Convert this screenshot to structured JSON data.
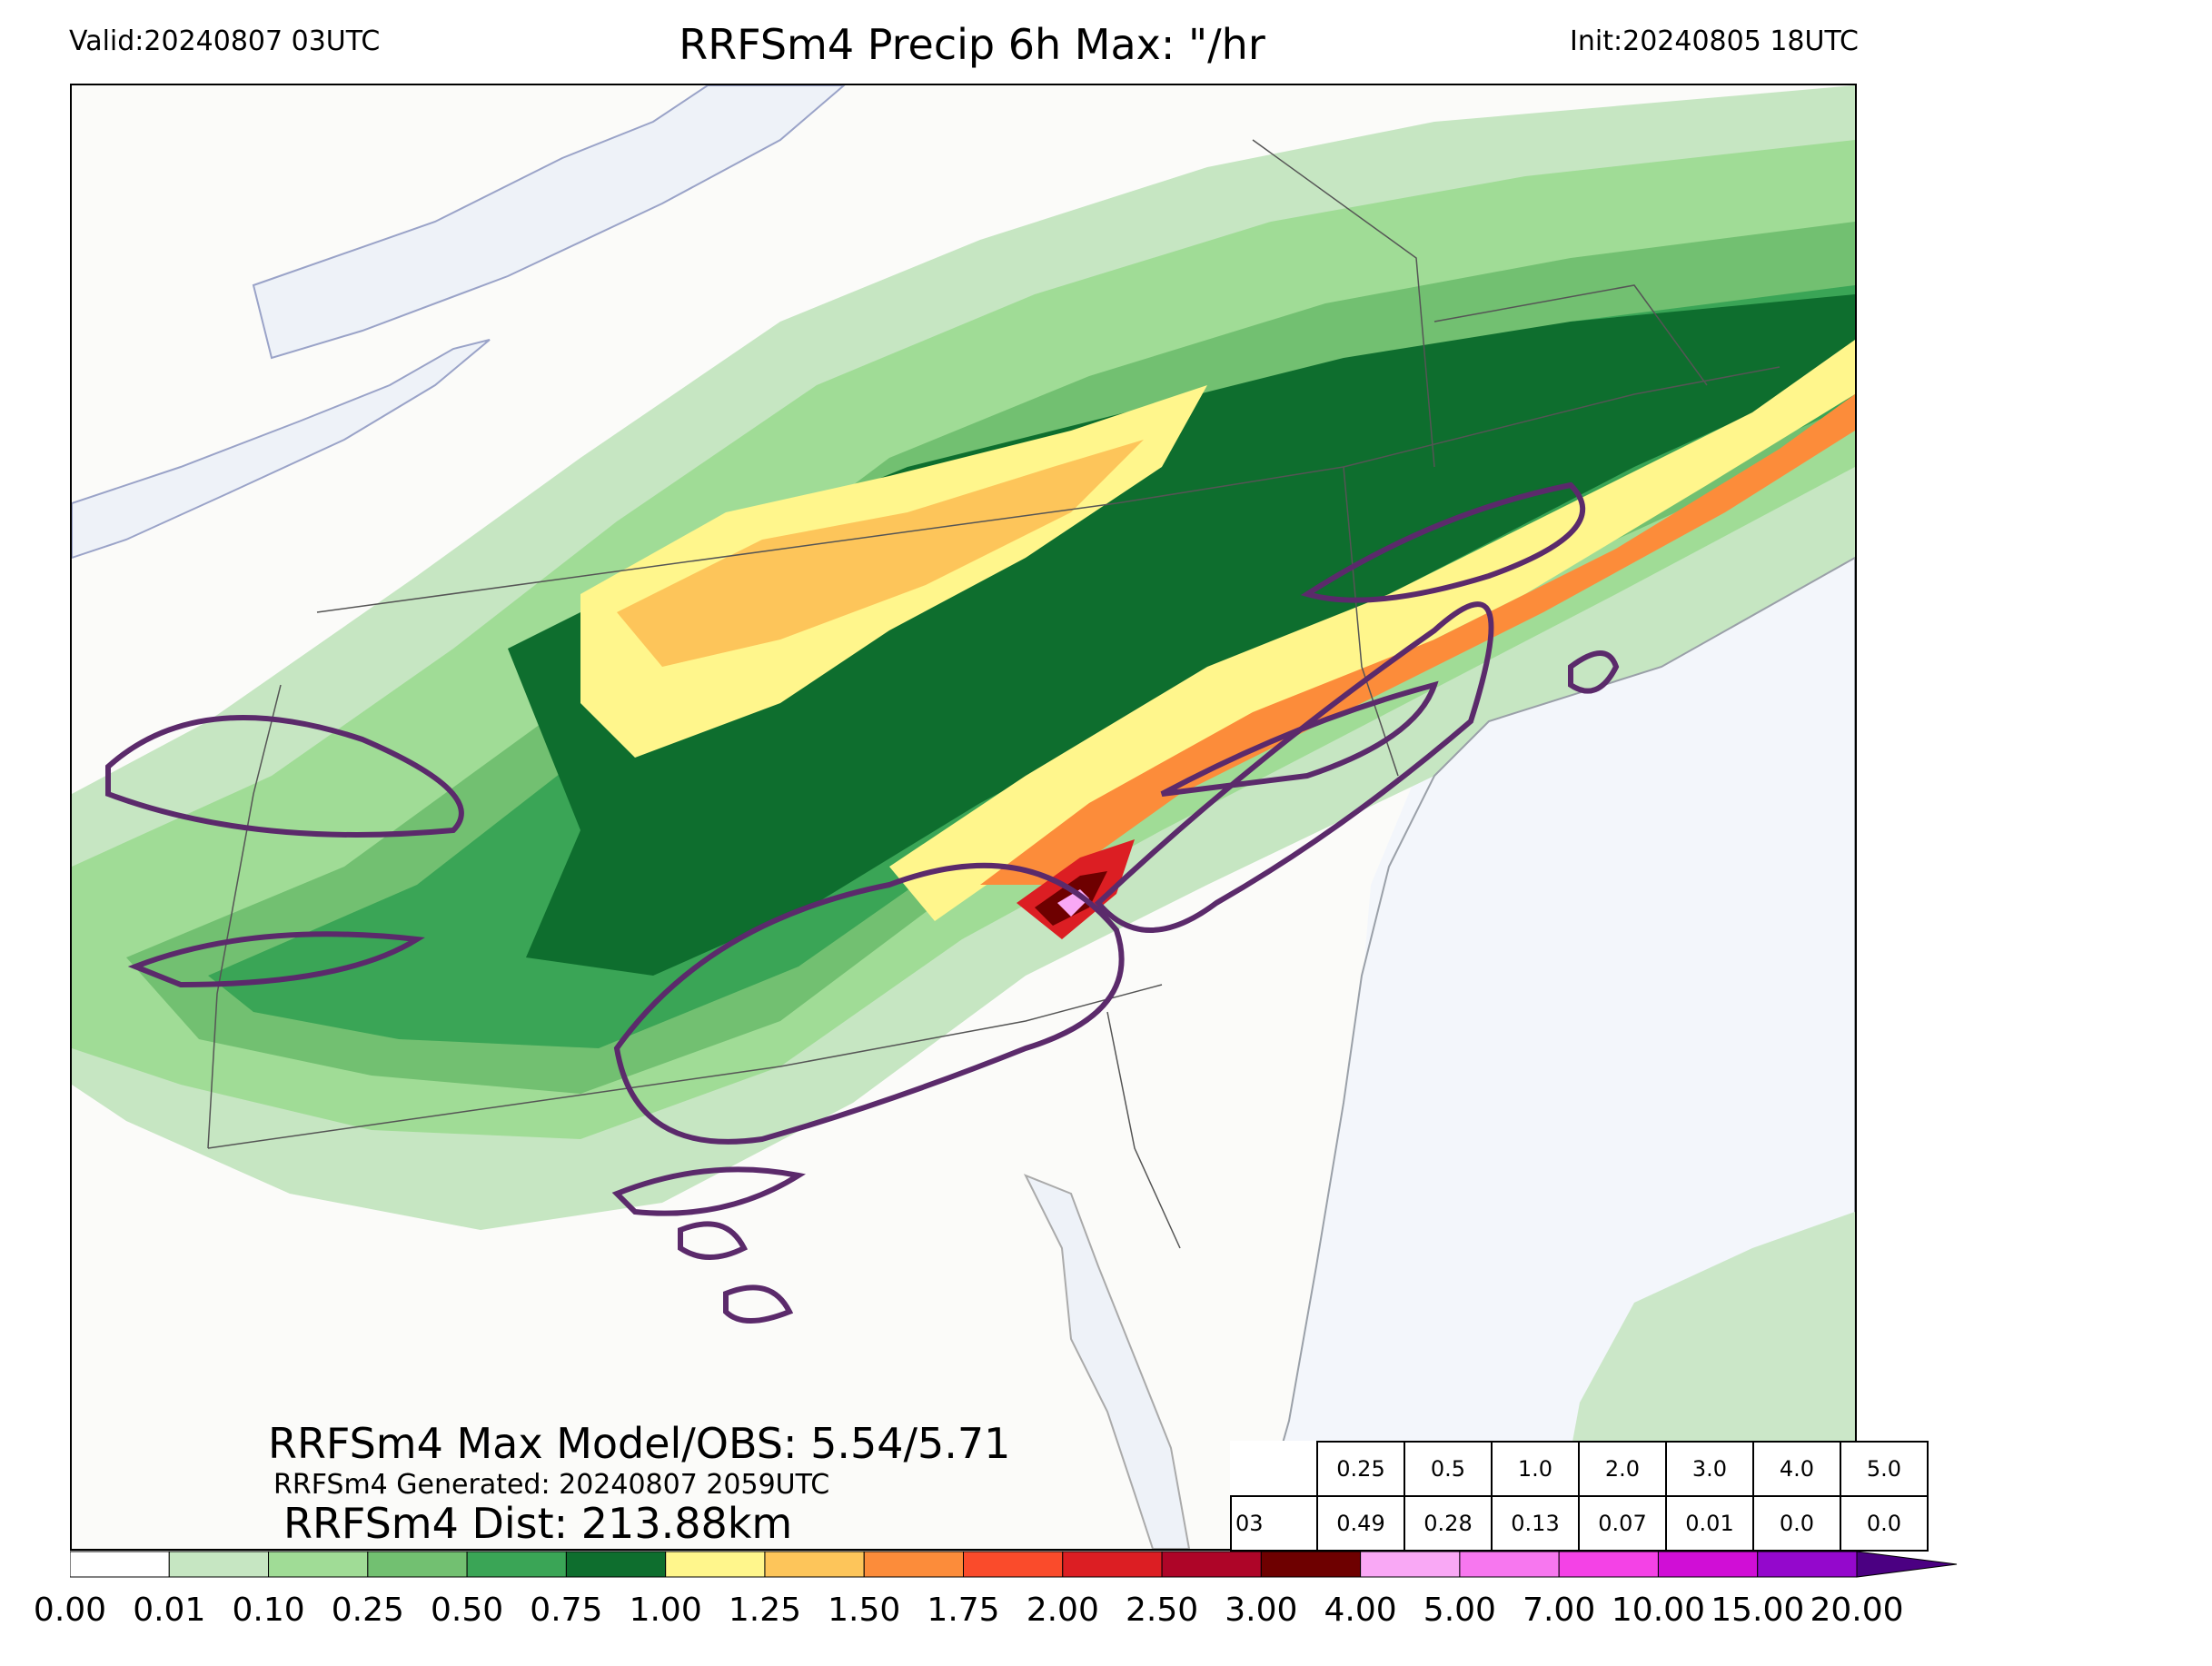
{
  "header": {
    "valid": "Valid:20240807 03UTC",
    "title": "RRFSm4 Precip 6h Max: \"/hr",
    "init": "Init:20240805 18UTC"
  },
  "stats": {
    "max_line": "RRFSm4 Max Model/OBS: 5.54/5.71",
    "generated_line": "RRFSm4 Generated: 20240807 2059UTC",
    "dist_line": "RRFSm4 Dist: 213.88km"
  },
  "threshold_table": {
    "thresholds": [
      "0.25",
      "0.5",
      "1.0",
      "2.0",
      "3.0",
      "4.0",
      "5.0"
    ],
    "row_label": "03",
    "values": [
      "0.49",
      "0.28",
      "0.13",
      "0.07",
      "0.01",
      "0.0",
      "0.0"
    ]
  },
  "colorbar": {
    "tick_labels": [
      "0.00",
      "0.01",
      "0.10",
      "0.25",
      "0.50",
      "0.75",
      "1.00",
      "1.25",
      "1.50",
      "1.75",
      "2.00",
      "2.50",
      "3.00",
      "4.00",
      "5.00",
      "7.00",
      "10.00",
      "15.00",
      "20.00"
    ],
    "colors": [
      "#ffffff",
      "#c6e6c2",
      "#a0dc96",
      "#72c071",
      "#3aa556",
      "#0e6e2e",
      "#fff68c",
      "#fdc55a",
      "#fc8c3a",
      "#fa4b2b",
      "#dc1e23",
      "#ae0528",
      "#6e0000",
      "#f9a8f5",
      "#f777ef",
      "#f442e6",
      "#d00ed6",
      "#9408cc"
    ],
    "extend_color": "#4b0082"
  },
  "map_colors": {
    "ocean": "#f3f6fb",
    "land": "#fbfbf9",
    "obs_contour": "#5b2a6b",
    "boundary": "#555555"
  }
}
